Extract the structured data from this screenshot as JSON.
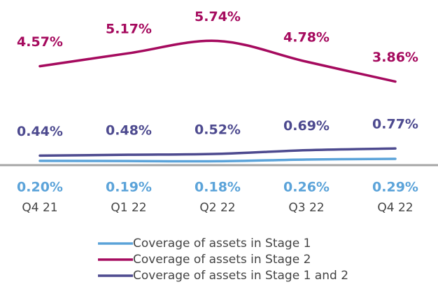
{
  "chart_data": {
    "type": "line",
    "categories": [
      "Q4 21",
      "Q1 22",
      "Q2 22",
      "Q3 22",
      "Q4 22"
    ],
    "series": [
      {
        "name": "Coverage of assets in Stage 1",
        "color": "#5ba3d9",
        "values": [
          0.2,
          0.19,
          0.18,
          0.26,
          0.29
        ],
        "value_labels": [
          "0.20%",
          "0.19%",
          "0.18%",
          "0.26%",
          "0.29%"
        ]
      },
      {
        "name": "Coverage of assets in Stage 2",
        "color": "#a50a5e",
        "values": [
          4.57,
          5.17,
          5.74,
          4.78,
          3.86
        ],
        "value_labels": [
          "4.57%",
          "5.17%",
          "5.74%",
          "4.78%",
          "3.86%"
        ]
      },
      {
        "name": "Coverage of assets in Stage 1 and 2",
        "color": "#4d4a8f",
        "values": [
          0.44,
          0.48,
          0.52,
          0.69,
          0.77
        ],
        "value_labels": [
          "0.44%",
          "0.48%",
          "0.52%",
          "0.69%",
          "0.77%"
        ]
      }
    ],
    "ylim": [
      0,
      7.5
    ]
  }
}
